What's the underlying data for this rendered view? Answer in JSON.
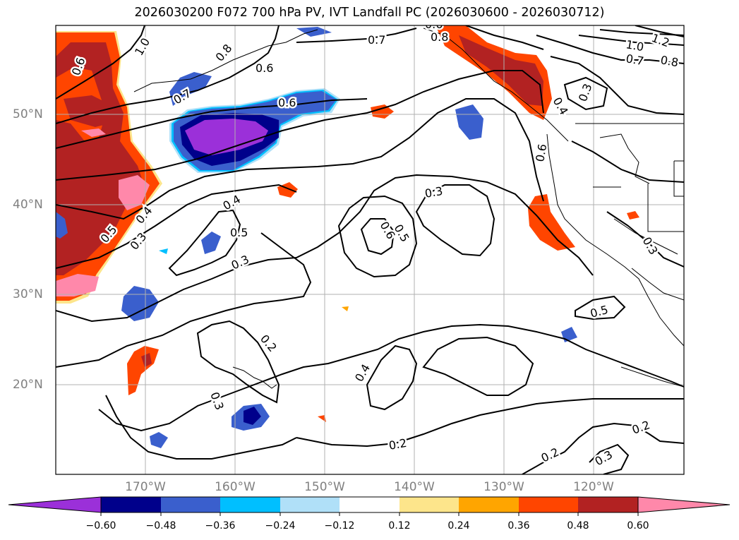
{
  "title": "2026030200 F072 700 hPa PV, IVT Landfall PC (2026030600 - 2026030712)",
  "latitude_labels": [
    "50°N",
    "40°N",
    "30°N",
    "20°N"
  ],
  "longitude_labels": [
    "170°W",
    "160°W",
    "150°W",
    "140°W",
    "130°W",
    "120°W"
  ],
  "colorbar": {
    "tick_labels": [
      "−0.60",
      "−0.48",
      "−0.36",
      "−0.24",
      "−0.12",
      "0.12",
      "0.24",
      "0.36",
      "0.48",
      "0.60"
    ],
    "colors": [
      "#9b30d9",
      "#00008b",
      "#3a5fcd",
      "#00bfff",
      "#b0e0f8",
      "#ffffff",
      "#fde58b",
      "#ffa500",
      "#ff4500",
      "#b22222",
      "#ff88aa"
    ]
  },
  "contour_labels": [
    "0.6",
    "1.0",
    "0.8",
    "0.6",
    "0.7",
    "0.7",
    "0.8",
    "0.6",
    "0.6",
    "1.2",
    "1.0",
    "0.7",
    "0.8",
    "0.3",
    "0.4",
    "0.6",
    "0.4",
    "0.5",
    "0.4",
    "0.5",
    "0.3",
    "0.3",
    "0.3",
    "0.6",
    "0.5",
    "0.3",
    "0.5",
    "0.2",
    "0.3",
    "0.4",
    "0.2",
    "0.2",
    "0.3",
    "0.2"
  ],
  "colors": {
    "contour": "#000000",
    "grid": "#b0b0b0",
    "coast": "#000000",
    "tick_text": "#808080"
  }
}
